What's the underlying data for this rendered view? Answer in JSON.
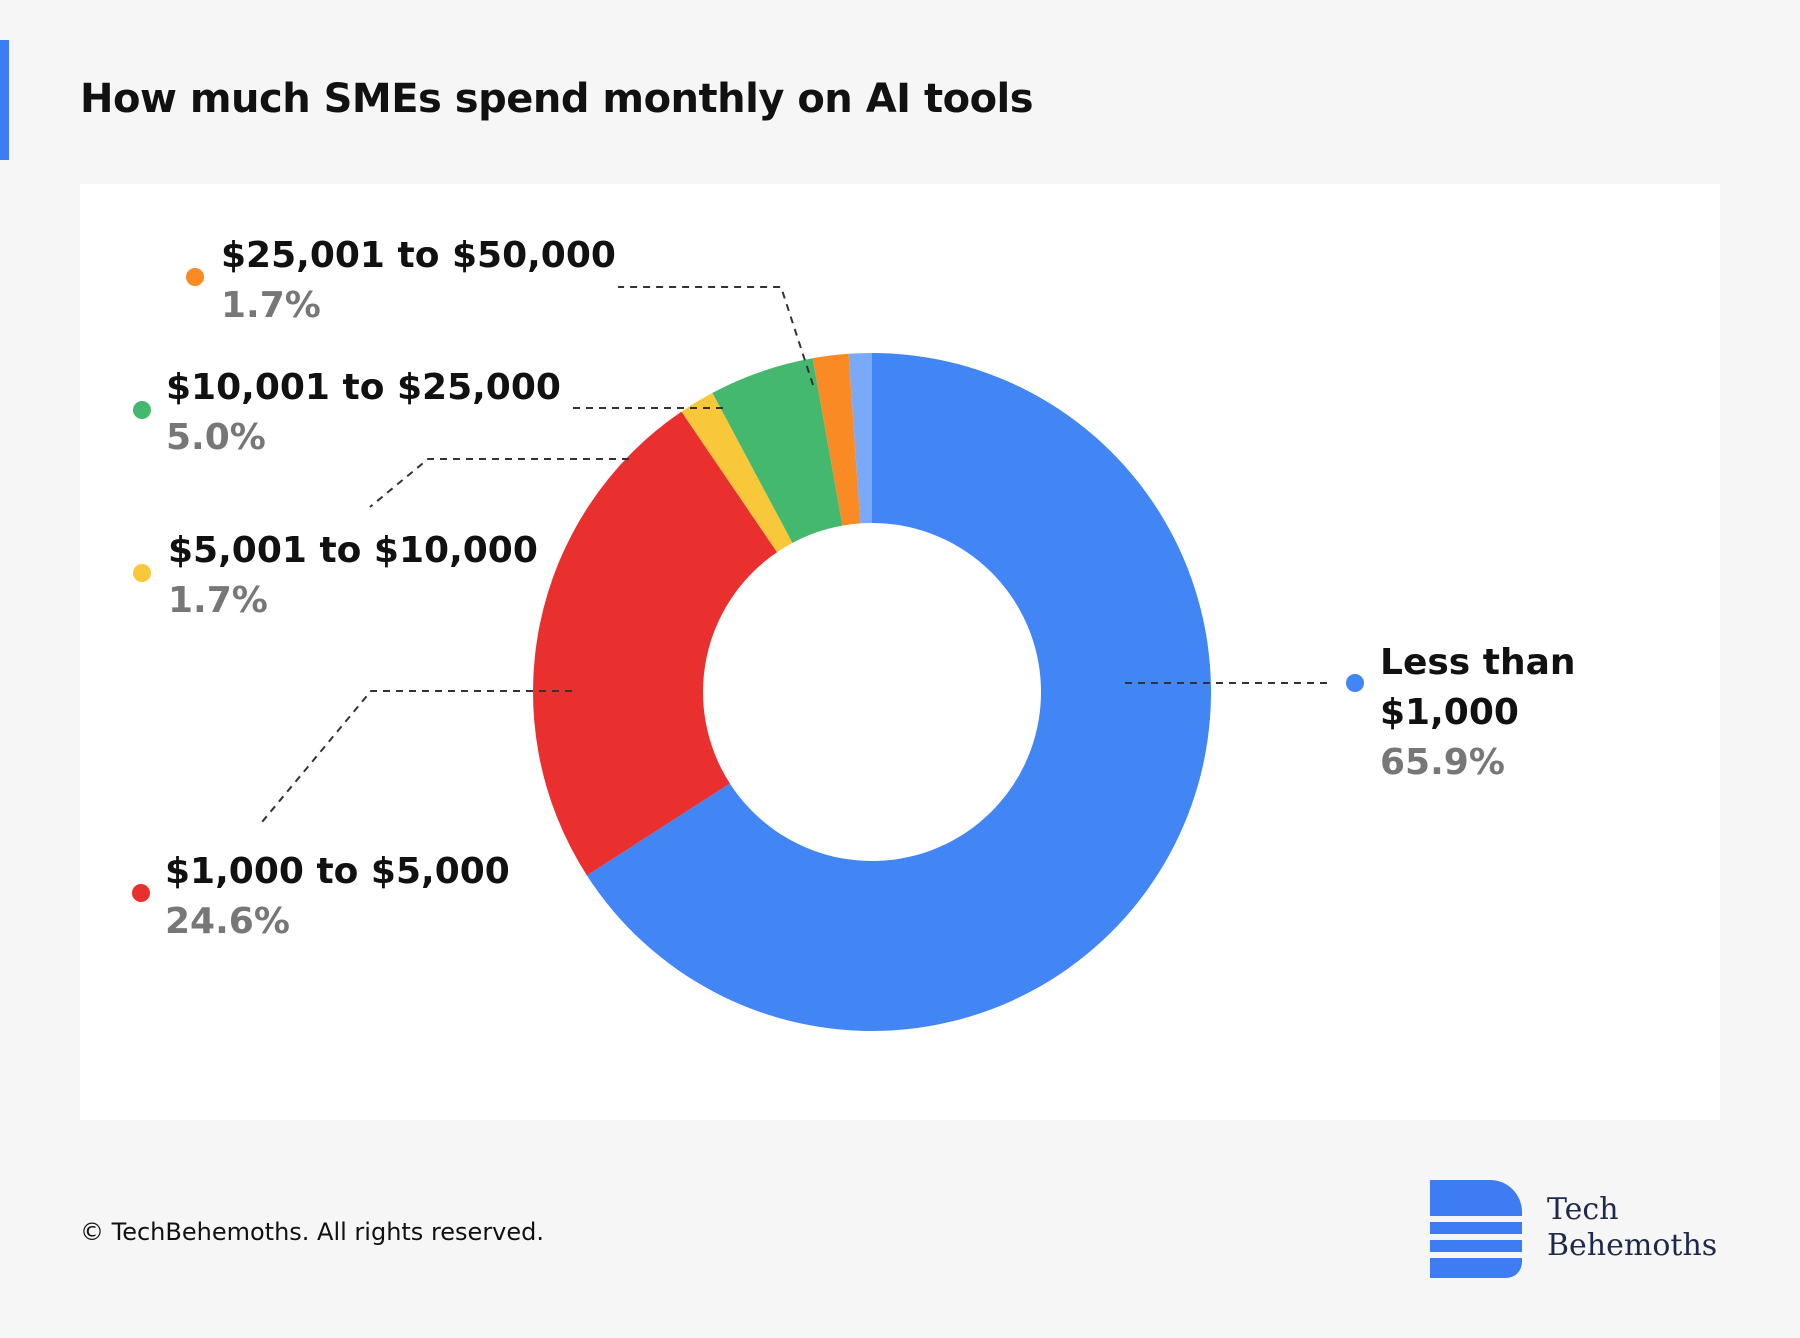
{
  "chart_data": {
    "type": "pie",
    "title": "How much SMEs spend monthly on AI tools",
    "categories": [
      "Less than $1,000",
      "$1,000 to $5,000",
      "$5,001 to $10,000",
      "$10,001 to $25,000",
      "$25,001 to $50,000",
      null
    ],
    "values": [
      65.9,
      24.6,
      1.7,
      5.0,
      1.7,
      1.1
    ],
    "value_labels": [
      "65.9%",
      "24.6%",
      "1.7%",
      "5.0%",
      "1.7%",
      null
    ],
    "colors": [
      "#4285f4",
      "#ea2f2f",
      "#f9c73a",
      "#45b86f",
      "#fa8a23",
      "#7aa9f7"
    ],
    "donut": true
  },
  "copyright": "© TechBehemoths. All rights reserved.",
  "logo_text": [
    "Tech",
    "Behemoths"
  ]
}
